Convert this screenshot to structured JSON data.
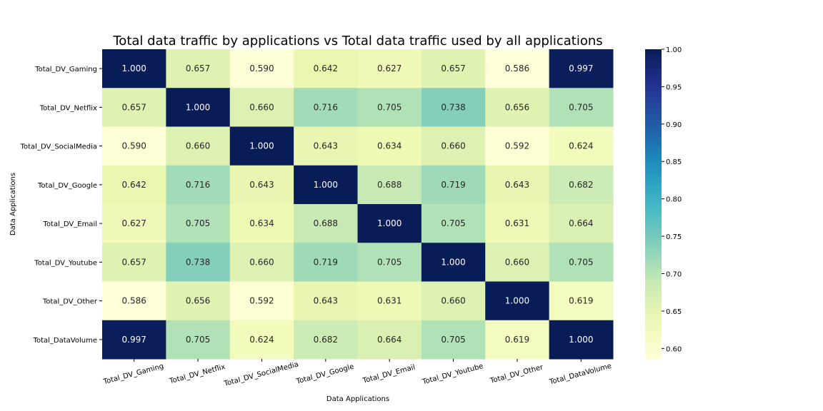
{
  "chart_data": {
    "type": "heatmap",
    "title": "Total data traffic by applications vs Total data traffic used by all applications",
    "xlabel": "Data Applications",
    "ylabel": "Data Applications",
    "x_categories": [
      "Total_DV_Gaming",
      "Total_DV_Netflix",
      "Total_DV_SocialMedia",
      "Total_DV_Google",
      "Total_DV_Email",
      "Total_DV_Youtube",
      "Total_DV_Other",
      "Total_DataVolume"
    ],
    "y_categories": [
      "Total_DV_Gaming",
      "Total_DV_Netflix",
      "Total_DV_SocialMedia",
      "Total_DV_Google",
      "Total_DV_Email",
      "Total_DV_Youtube",
      "Total_DV_Other",
      "Total_DataVolume"
    ],
    "values": [
      [
        1.0,
        0.657,
        0.59,
        0.642,
        0.627,
        0.657,
        0.586,
        0.997
      ],
      [
        0.657,
        1.0,
        0.66,
        0.716,
        0.705,
        0.738,
        0.656,
        0.705
      ],
      [
        0.59,
        0.66,
        1.0,
        0.643,
        0.634,
        0.66,
        0.592,
        0.624
      ],
      [
        0.642,
        0.716,
        0.643,
        1.0,
        0.688,
        0.719,
        0.643,
        0.682
      ],
      [
        0.627,
        0.705,
        0.634,
        0.688,
        1.0,
        0.705,
        0.631,
        0.664
      ],
      [
        0.657,
        0.738,
        0.66,
        0.719,
        0.705,
        1.0,
        0.66,
        0.705
      ],
      [
        0.586,
        0.656,
        0.592,
        0.643,
        0.631,
        0.66,
        1.0,
        0.619
      ],
      [
        0.997,
        0.705,
        0.624,
        0.682,
        0.664,
        0.705,
        0.619,
        1.0
      ]
    ],
    "value_format": "0.000",
    "colormap": "YlGnBu",
    "colorbar": {
      "range": [
        0.586,
        1.0
      ],
      "ticks": [
        0.6,
        0.65,
        0.7,
        0.75,
        0.8,
        0.85,
        0.9,
        0.95,
        1.0
      ],
      "tick_labels": [
        "0.60",
        "0.65",
        "0.70",
        "0.75",
        "0.80",
        "0.85",
        "0.90",
        "0.95",
        "1.00"
      ]
    },
    "x_tick_rotation": "slanted",
    "grid": false
  }
}
